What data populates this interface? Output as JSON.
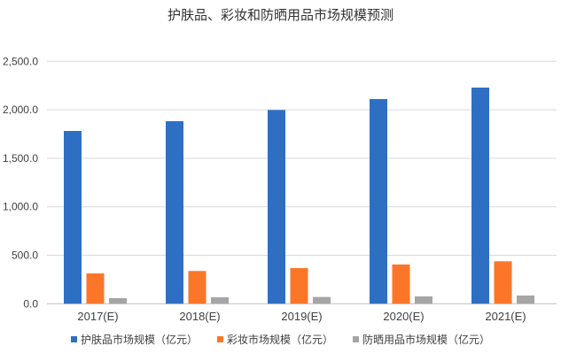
{
  "chart_data": {
    "type": "bar",
    "title": "护肤品、彩妆和防晒用品市场规模预测",
    "categories": [
      "2017(E)",
      "2018(E)",
      "2019(E)",
      "2020(E)",
      "2021(E)"
    ],
    "series": [
      {
        "name": "护肤品市场规模（亿元）",
        "color": "#2e6fc4",
        "values": [
          1782,
          1883,
          1998,
          2111,
          2229
        ]
      },
      {
        "name": "彩妆市场规模（亿元）",
        "color": "#fb7628",
        "values": [
          313,
          338,
          368,
          405,
          438
        ]
      },
      {
        "name": "防晒用品市场规模（亿元）",
        "color": "#a5a5a5",
        "values": [
          58,
          67,
          70,
          76,
          85
        ]
      }
    ],
    "ylim": [
      0,
      2500
    ],
    "yticks": [
      "0.0",
      "500.0",
      "1,000.0",
      "1,500.0",
      "2,000.0",
      "2,500.0"
    ],
    "ytick_values": [
      0,
      500,
      1000,
      1500,
      2000,
      2500
    ],
    "xlabel": "",
    "ylabel": "",
    "grid": true,
    "legend": "bottom"
  }
}
